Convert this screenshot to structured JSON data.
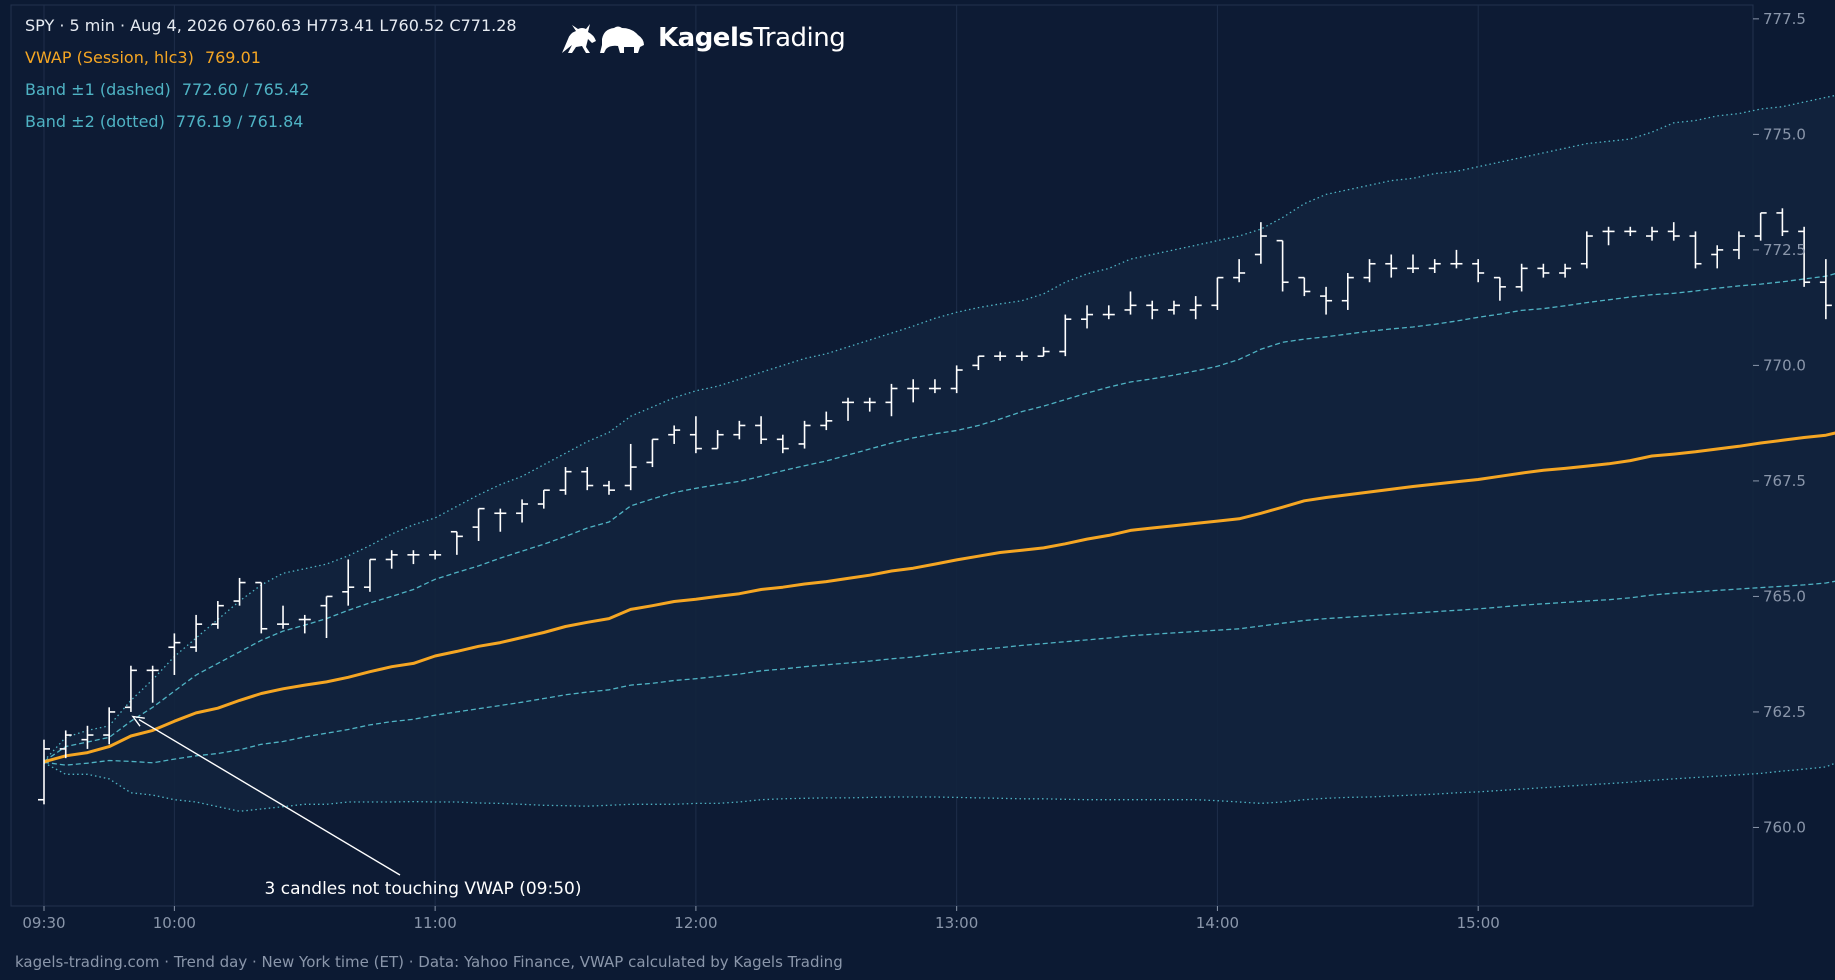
{
  "header": {
    "symbol_line": "SPY · 5 min · Aug 4, 2026   O760.63 H773.41 L760.52 C771.28",
    "vwap_label": "VWAP (Session, hlc3)",
    "vwap_value": "769.01",
    "band1_label": "Band ±1 (dashed)",
    "band1_value": "772.60 / 765.42",
    "band2_label": "Band ±2 (dotted)",
    "band2_value": "776.19 / 761.84"
  },
  "brand": {
    "name_bold": "Kagels",
    "name_light": "Trading",
    "logo": "bull-bear-icon"
  },
  "footer": {
    "text": "kagels-trading.com · Trend day · New York time (ET) · Data: Yahoo Finance, VWAP calculated by Kagels Trading"
  },
  "colors": {
    "background": "#0c1a33",
    "plot_bg": "#0d1b34",
    "band_fill": "#12243d",
    "candle": "#ffffff",
    "vwap": "#f5a623",
    "band": "#4fb3c4",
    "grid": "#1e2e4a",
    "axis_text": "#8a96aa"
  },
  "chart_data": {
    "type": "ohlc",
    "interval": "5 min",
    "ylim": [
      758.3,
      777.8
    ],
    "yticks": [
      760.0,
      762.5,
      765.0,
      767.5,
      770.0,
      772.5,
      775.0,
      777.5
    ],
    "ytick_labels": [
      "760.0",
      "762.5",
      "765.0",
      "767.5",
      "770.0",
      "772.5",
      "775.0",
      "777.5"
    ],
    "xticks": [
      "09:30",
      "10:00",
      "11:00",
      "12:00",
      "13:00",
      "14:00",
      "15:00"
    ],
    "grid": "vertical",
    "annotation": {
      "text": "3 candles not touching VWAP (09:50)",
      "time": "09:50",
      "price": 762.4
    },
    "ohlc": [
      {
        "t": "09:30",
        "o": 760.6,
        "h": 761.9,
        "l": 760.5,
        "c": 761.7
      },
      {
        "t": "09:35",
        "o": 761.7,
        "h": 762.1,
        "l": 761.5,
        "c": 762.0
      },
      {
        "t": "09:40",
        "o": 761.9,
        "h": 762.2,
        "l": 761.7,
        "c": 762.0
      },
      {
        "t": "09:45",
        "o": 762.0,
        "h": 762.6,
        "l": 761.8,
        "c": 762.5
      },
      {
        "t": "09:50",
        "o": 762.6,
        "h": 763.5,
        "l": 762.5,
        "c": 763.4
      },
      {
        "t": "09:55",
        "o": 763.4,
        "h": 763.5,
        "l": 762.7,
        "c": 763.4
      },
      {
        "t": "10:00",
        "o": 763.9,
        "h": 764.2,
        "l": 763.3,
        "c": 764.0
      },
      {
        "t": "10:05",
        "o": 763.9,
        "h": 764.6,
        "l": 763.8,
        "c": 764.4
      },
      {
        "t": "10:10",
        "o": 764.4,
        "h": 764.9,
        "l": 764.3,
        "c": 764.8
      },
      {
        "t": "10:15",
        "o": 764.9,
        "h": 765.4,
        "l": 764.8,
        "c": 765.3
      },
      {
        "t": "10:20",
        "o": 765.3,
        "h": 765.3,
        "l": 764.2,
        "c": 764.3
      },
      {
        "t": "10:25",
        "o": 764.4,
        "h": 764.8,
        "l": 764.3,
        "c": 764.4
      },
      {
        "t": "10:30",
        "o": 764.5,
        "h": 764.6,
        "l": 764.2,
        "c": 764.5
      },
      {
        "t": "10:35",
        "o": 764.8,
        "h": 765.0,
        "l": 764.1,
        "c": 765.0
      },
      {
        "t": "10:40",
        "o": 765.1,
        "h": 765.8,
        "l": 764.8,
        "c": 765.2
      },
      {
        "t": "10:45",
        "o": 765.2,
        "h": 765.8,
        "l": 765.1,
        "c": 765.8
      },
      {
        "t": "10:50",
        "o": 765.8,
        "h": 766.0,
        "l": 765.6,
        "c": 765.9
      },
      {
        "t": "10:55",
        "o": 765.9,
        "h": 766.0,
        "l": 765.7,
        "c": 765.9
      },
      {
        "t": "11:00",
        "o": 765.9,
        "h": 766.0,
        "l": 765.8,
        "c": 765.9
      },
      {
        "t": "11:05",
        "o": 766.4,
        "h": 766.4,
        "l": 765.9,
        "c": 766.3
      },
      {
        "t": "11:10",
        "o": 766.5,
        "h": 766.9,
        "l": 766.2,
        "c": 766.9
      },
      {
        "t": "11:15",
        "o": 766.8,
        "h": 766.9,
        "l": 766.4,
        "c": 766.8
      },
      {
        "t": "11:20",
        "o": 766.8,
        "h": 767.1,
        "l": 766.6,
        "c": 767.0
      },
      {
        "t": "11:25",
        "o": 767.0,
        "h": 767.3,
        "l": 766.9,
        "c": 767.3
      },
      {
        "t": "11:30",
        "o": 767.3,
        "h": 767.8,
        "l": 767.2,
        "c": 767.7
      },
      {
        "t": "11:35",
        "o": 767.7,
        "h": 767.8,
        "l": 767.3,
        "c": 767.4
      },
      {
        "t": "11:40",
        "o": 767.4,
        "h": 767.5,
        "l": 767.2,
        "c": 767.3
      },
      {
        "t": "11:45",
        "o": 767.4,
        "h": 768.3,
        "l": 767.3,
        "c": 767.8
      },
      {
        "t": "11:50",
        "o": 767.9,
        "h": 768.4,
        "l": 767.8,
        "c": 768.4
      },
      {
        "t": "11:55",
        "o": 768.5,
        "h": 768.7,
        "l": 768.3,
        "c": 768.6
      },
      {
        "t": "12:00",
        "o": 768.5,
        "h": 768.9,
        "l": 768.1,
        "c": 768.2
      },
      {
        "t": "12:05",
        "o": 768.2,
        "h": 768.6,
        "l": 768.2,
        "c": 768.5
      },
      {
        "t": "12:10",
        "o": 768.5,
        "h": 768.8,
        "l": 768.4,
        "c": 768.7
      },
      {
        "t": "12:15",
        "o": 768.7,
        "h": 768.9,
        "l": 768.3,
        "c": 768.4
      },
      {
        "t": "12:20",
        "o": 768.4,
        "h": 768.5,
        "l": 768.1,
        "c": 768.2
      },
      {
        "t": "12:25",
        "o": 768.3,
        "h": 768.8,
        "l": 768.2,
        "c": 768.7
      },
      {
        "t": "12:30",
        "o": 768.7,
        "h": 769.0,
        "l": 768.6,
        "c": 768.8
      },
      {
        "t": "12:35",
        "o": 769.2,
        "h": 769.3,
        "l": 768.8,
        "c": 769.2
      },
      {
        "t": "12:40",
        "o": 769.2,
        "h": 769.3,
        "l": 769.0,
        "c": 769.2
      },
      {
        "t": "12:45",
        "o": 769.2,
        "h": 769.6,
        "l": 768.9,
        "c": 769.5
      },
      {
        "t": "12:50",
        "o": 769.5,
        "h": 769.7,
        "l": 769.2,
        "c": 769.5
      },
      {
        "t": "12:55",
        "o": 769.5,
        "h": 769.7,
        "l": 769.4,
        "c": 769.5
      },
      {
        "t": "13:00",
        "o": 769.5,
        "h": 770.0,
        "l": 769.4,
        "c": 769.9
      },
      {
        "t": "13:05",
        "o": 770.0,
        "h": 770.2,
        "l": 769.9,
        "c": 770.2
      },
      {
        "t": "13:10",
        "o": 770.2,
        "h": 770.3,
        "l": 770.1,
        "c": 770.2
      },
      {
        "t": "13:15",
        "o": 770.2,
        "h": 770.3,
        "l": 770.1,
        "c": 770.2
      },
      {
        "t": "13:20",
        "o": 770.2,
        "h": 770.4,
        "l": 770.2,
        "c": 770.3
      },
      {
        "t": "13:25",
        "o": 770.3,
        "h": 771.1,
        "l": 770.2,
        "c": 771.0
      },
      {
        "t": "13:30",
        "o": 771.0,
        "h": 771.3,
        "l": 770.8,
        "c": 771.1
      },
      {
        "t": "13:35",
        "o": 771.1,
        "h": 771.3,
        "l": 771.0,
        "c": 771.1
      },
      {
        "t": "13:40",
        "o": 771.2,
        "h": 771.6,
        "l": 771.1,
        "c": 771.3
      },
      {
        "t": "13:45",
        "o": 771.3,
        "h": 771.4,
        "l": 771.0,
        "c": 771.2
      },
      {
        "t": "13:50",
        "o": 771.2,
        "h": 771.4,
        "l": 771.1,
        "c": 771.3
      },
      {
        "t": "13:55",
        "o": 771.2,
        "h": 771.5,
        "l": 771.0,
        "c": 771.3
      },
      {
        "t": "14:00",
        "o": 771.3,
        "h": 771.9,
        "l": 771.2,
        "c": 771.9
      },
      {
        "t": "14:05",
        "o": 771.9,
        "h": 772.3,
        "l": 771.8,
        "c": 772.0
      },
      {
        "t": "14:10",
        "o": 772.4,
        "h": 773.1,
        "l": 772.2,
        "c": 772.8
      },
      {
        "t": "14:15",
        "o": 772.7,
        "h": 772.7,
        "l": 771.6,
        "c": 771.8
      },
      {
        "t": "14:20",
        "o": 771.9,
        "h": 771.9,
        "l": 771.5,
        "c": 771.6
      },
      {
        "t": "14:25",
        "o": 771.5,
        "h": 771.7,
        "l": 771.1,
        "c": 771.4
      },
      {
        "t": "14:30",
        "o": 771.4,
        "h": 772.0,
        "l": 771.2,
        "c": 771.9
      },
      {
        "t": "14:35",
        "o": 771.9,
        "h": 772.3,
        "l": 771.8,
        "c": 772.2
      },
      {
        "t": "14:40",
        "o": 772.2,
        "h": 772.4,
        "l": 771.9,
        "c": 772.1
      },
      {
        "t": "14:45",
        "o": 772.1,
        "h": 772.4,
        "l": 772.0,
        "c": 772.1
      },
      {
        "t": "14:50",
        "o": 772.1,
        "h": 772.3,
        "l": 772.0,
        "c": 772.2
      },
      {
        "t": "14:55",
        "o": 772.2,
        "h": 772.5,
        "l": 772.1,
        "c": 772.2
      },
      {
        "t": "15:00",
        "o": 772.2,
        "h": 772.3,
        "l": 771.8,
        "c": 772.0
      },
      {
        "t": "15:05",
        "o": 771.9,
        "h": 771.9,
        "l": 771.4,
        "c": 771.7
      },
      {
        "t": "15:10",
        "o": 771.7,
        "h": 772.2,
        "l": 771.6,
        "c": 772.1
      },
      {
        "t": "15:15",
        "o": 772.1,
        "h": 772.2,
        "l": 771.9,
        "c": 772.0
      },
      {
        "t": "15:20",
        "o": 772.0,
        "h": 772.2,
        "l": 771.9,
        "c": 772.1
      },
      {
        "t": "15:25",
        "o": 772.2,
        "h": 772.9,
        "l": 772.1,
        "c": 772.8
      },
      {
        "t": "15:30",
        "o": 772.9,
        "h": 773.0,
        "l": 772.6,
        "c": 772.9
      },
      {
        "t": "15:35",
        "o": 772.9,
        "h": 773.0,
        "l": 772.8,
        "c": 772.9
      },
      {
        "t": "15:40",
        "o": 772.8,
        "h": 773.0,
        "l": 772.7,
        "c": 772.9
      },
      {
        "t": "15:45",
        "o": 772.9,
        "h": 773.1,
        "l": 772.7,
        "c": 772.8
      },
      {
        "t": "15:50",
        "o": 772.8,
        "h": 772.9,
        "l": 772.1,
        "c": 772.2
      },
      {
        "t": "15:55",
        "o": 772.4,
        "h": 772.6,
        "l": 772.1,
        "c": 772.5
      },
      {
        "t": "16:00",
        "o": 772.5,
        "h": 772.9,
        "l": 772.3,
        "c": 772.8
      },
      {
        "t": "16:05",
        "o": 772.8,
        "h": 773.3,
        "l": 772.7,
        "c": 773.3
      },
      {
        "t": "16:10",
        "o": 773.3,
        "h": 773.4,
        "l": 772.8,
        "c": 772.9
      },
      {
        "t": "16:15",
        "o": 772.9,
        "h": 773.0,
        "l": 771.7,
        "c": 771.8
      },
      {
        "t": "16:20",
        "o": 771.8,
        "h": 772.3,
        "l": 771.0,
        "c": 771.3
      }
    ],
    "series": [
      {
        "name": "VWAP (Session, hlc3)",
        "values": [
          761.42,
          761.55,
          761.62,
          761.75,
          761.98,
          762.1,
          762.3,
          762.48,
          762.58,
          762.75,
          762.9,
          763.0,
          763.08,
          763.15,
          763.25,
          763.37,
          763.48,
          763.55,
          763.71,
          763.81,
          763.92,
          764.0,
          764.11,
          764.22,
          764.35,
          764.44,
          764.52,
          764.72,
          764.8,
          764.89,
          764.94,
          765.0,
          765.06,
          765.15,
          765.2,
          765.27,
          765.32,
          765.39,
          765.46,
          765.55,
          765.61,
          765.7,
          765.79,
          765.87,
          765.95,
          766.0,
          766.05,
          766.14,
          766.24,
          766.32,
          766.43,
          766.48,
          766.53,
          766.58,
          766.63,
          766.68,
          766.8,
          766.93,
          767.07,
          767.14,
          767.2,
          767.26,
          767.32,
          767.38,
          767.43,
          767.48,
          767.53,
          767.6,
          767.67,
          767.73,
          767.77,
          767.82,
          767.87,
          767.94,
          768.04,
          768.08,
          768.13,
          768.19,
          768.25,
          768.32,
          768.38,
          768.44,
          768.49,
          768.6,
          768.8,
          769.01
        ]
      },
      {
        "name": "Band +1",
        "values": [
          761.43,
          761.75,
          761.85,
          761.95,
          762.3,
          762.6,
          762.95,
          763.3,
          763.55,
          763.8,
          764.05,
          764.25,
          764.38,
          764.52,
          764.7,
          764.86,
          765.0,
          765.15,
          765.37,
          765.52,
          765.66,
          765.83,
          765.98,
          766.13,
          766.3,
          766.48,
          766.61,
          766.96,
          767.11,
          767.25,
          767.34,
          767.42,
          767.49,
          767.6,
          767.72,
          767.83,
          767.93,
          768.06,
          768.19,
          768.32,
          768.43,
          768.52,
          768.59,
          768.7,
          768.84,
          769.0,
          769.12,
          769.26,
          769.4,
          769.53,
          769.64,
          769.71,
          769.79,
          769.88,
          769.98,
          770.13,
          770.35,
          770.5,
          770.57,
          770.62,
          770.68,
          770.74,
          770.79,
          770.83,
          770.89,
          770.96,
          771.04,
          771.11,
          771.19,
          771.23,
          771.29,
          771.36,
          771.42,
          771.48,
          771.53,
          771.56,
          771.61,
          771.67,
          771.72,
          771.76,
          771.81,
          771.87,
          771.93,
          772.06,
          772.26,
          772.6
        ]
      },
      {
        "name": "Band -1",
        "values": [
          761.41,
          761.35,
          761.39,
          761.45,
          761.43,
          761.4,
          761.48,
          761.55,
          761.6,
          761.68,
          761.8,
          761.86,
          761.96,
          762.04,
          762.12,
          762.22,
          762.29,
          762.34,
          762.43,
          762.5,
          762.57,
          762.64,
          762.71,
          762.79,
          762.87,
          762.93,
          762.98,
          763.08,
          763.12,
          763.18,
          763.22,
          763.27,
          763.32,
          763.39,
          763.43,
          763.48,
          763.52,
          763.56,
          763.6,
          763.65,
          763.69,
          763.75,
          763.8,
          763.85,
          763.89,
          763.94,
          763.98,
          764.02,
          764.06,
          764.1,
          764.15,
          764.18,
          764.21,
          764.24,
          764.27,
          764.3,
          764.36,
          764.42,
          764.48,
          764.52,
          764.55,
          764.58,
          764.61,
          764.64,
          764.67,
          764.7,
          764.73,
          764.77,
          764.81,
          764.84,
          764.87,
          764.9,
          764.93,
          764.97,
          765.03,
          765.07,
          765.1,
          765.13,
          765.16,
          765.19,
          765.22,
          765.25,
          765.29,
          765.38,
          765.54,
          765.42
        ]
      },
      {
        "name": "Band +2",
        "values": [
          761.44,
          761.95,
          762.1,
          762.2,
          762.75,
          763.2,
          763.7,
          764.1,
          764.5,
          764.9,
          765.25,
          765.5,
          765.6,
          765.7,
          765.88,
          766.1,
          766.35,
          766.55,
          766.7,
          766.95,
          767.2,
          767.42,
          767.6,
          767.85,
          768.1,
          768.35,
          768.55,
          768.9,
          769.1,
          769.3,
          769.45,
          769.55,
          769.7,
          769.85,
          770.0,
          770.15,
          770.25,
          770.4,
          770.55,
          770.7,
          770.85,
          771.02,
          771.15,
          771.25,
          771.33,
          771.4,
          771.55,
          771.8,
          771.98,
          772.1,
          772.3,
          772.4,
          772.5,
          772.6,
          772.7,
          772.8,
          772.95,
          773.2,
          773.5,
          773.7,
          773.8,
          773.9,
          774.0,
          774.05,
          774.15,
          774.2,
          774.3,
          774.4,
          774.5,
          774.6,
          774.7,
          774.8,
          774.85,
          774.9,
          775.05,
          775.25,
          775.3,
          775.4,
          775.45,
          775.55,
          775.6,
          775.7,
          775.8,
          775.9,
          776.05,
          776.19
        ]
      },
      {
        "name": "Band -2",
        "values": [
          761.4,
          761.15,
          761.15,
          761.05,
          760.75,
          760.7,
          760.6,
          760.55,
          760.45,
          760.35,
          760.4,
          760.45,
          760.5,
          760.5,
          760.55,
          760.55,
          760.55,
          760.56,
          760.55,
          760.55,
          760.53,
          760.52,
          760.5,
          760.48,
          760.47,
          760.46,
          760.48,
          760.5,
          760.5,
          760.5,
          760.52,
          760.52,
          760.55,
          760.6,
          760.62,
          760.63,
          760.64,
          760.64,
          760.65,
          760.66,
          760.66,
          760.66,
          760.65,
          760.64,
          760.63,
          760.62,
          760.62,
          760.61,
          760.6,
          760.6,
          760.6,
          760.6,
          760.6,
          760.6,
          760.58,
          760.55,
          760.52,
          760.55,
          760.6,
          760.63,
          760.65,
          760.66,
          760.68,
          760.7,
          760.72,
          760.75,
          760.77,
          760.8,
          760.83,
          760.86,
          760.89,
          760.92,
          760.95,
          760.98,
          761.02,
          761.05,
          761.08,
          761.11,
          761.14,
          761.17,
          761.22,
          761.26,
          761.31,
          761.5,
          761.84,
          761.84
        ]
      }
    ]
  }
}
